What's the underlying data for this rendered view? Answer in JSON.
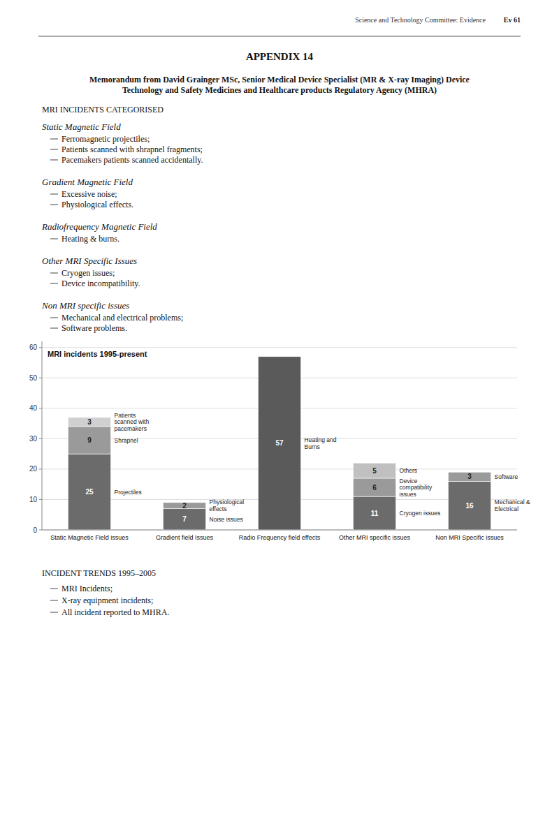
{
  "page_header": "Science and Technology Committee: Evidence",
  "page_number": "Ev 61",
  "appendix_title": "APPENDIX 14",
  "memo_lines": [
    "Memorandum from David Grainger MSc, Senior Medical Device Specialist (MR & X-ray Imaging) Device",
    "Technology and Safety Medicines and Healthcare products Regulatory Agency (MHRA)"
  ],
  "section1_title": "MRI INCIDENTS CATEGORISED",
  "subsections": [
    {
      "title": "Static Magnetic Field",
      "items": [
        "Ferromagnetic projectiles;",
        "Patients scanned with shrapnel fragments;",
        "Pacemakers patients scanned accidentally."
      ]
    },
    {
      "title": "Gradient Magnetic Field",
      "items": [
        "Excessive noise;",
        "Physiological effects."
      ]
    },
    {
      "title": "Radiofrequency Magnetic Field",
      "items": [
        "Heating & burns."
      ]
    },
    {
      "title": "Other MRI Specific Issues",
      "items": [
        "Cryogen issues;",
        "Device incompatibility."
      ]
    },
    {
      "title": "Non MRI specific issues",
      "items": [
        "Mechanical and electrical problems;",
        "Software problems."
      ]
    }
  ],
  "chart_data": {
    "type": "bar",
    "stacked": true,
    "title": "MRI incidents 1995-present",
    "categories": [
      "Static Magnetic Field issues",
      "Gradient field Issues",
      "Radio Frequency field effects",
      "Other MRI specific issues",
      "Non MRI Specific issues"
    ],
    "series": [
      {
        "values": [
          25,
          7,
          57,
          11,
          16
        ],
        "colors": [
          "#6b6b6b",
          "#6b6b6b",
          "#5a5a5a",
          "#6b6b6b",
          "#6b6b6b"
        ],
        "annotations": [
          "Projectiles",
          "Noise issues",
          "Heating and Burns",
          "Cryogen issues",
          "Mechanical & Electrical"
        ]
      },
      {
        "values": [
          9,
          2,
          null,
          6,
          3
        ],
        "colors": [
          "#9a9a9a",
          "#9a9a9a",
          null,
          "#9a9a9a",
          "#9a9a9a"
        ],
        "annotations": [
          "Shrapnel",
          "Physiological effects",
          null,
          "Device compatibility issues",
          "Software"
        ]
      },
      {
        "values": [
          3,
          null,
          null,
          5,
          null
        ],
        "colors": [
          "#d0d0d0",
          null,
          null,
          "#c0c0c0",
          null
        ],
        "annotations": [
          "Patients scanned with pacemakers",
          null,
          null,
          "Others",
          null
        ]
      }
    ],
    "ylim": [
      0,
      62
    ],
    "yticks": [
      0,
      10,
      20,
      30,
      40,
      50,
      60
    ],
    "grid": true,
    "data_labels": true
  },
  "section2_title": "INCIDENT TRENDS 1995–2005",
  "section2_items": [
    "MRI Incidents;",
    "X-ray equipment incidents;",
    "All incident reported to MHRA."
  ]
}
